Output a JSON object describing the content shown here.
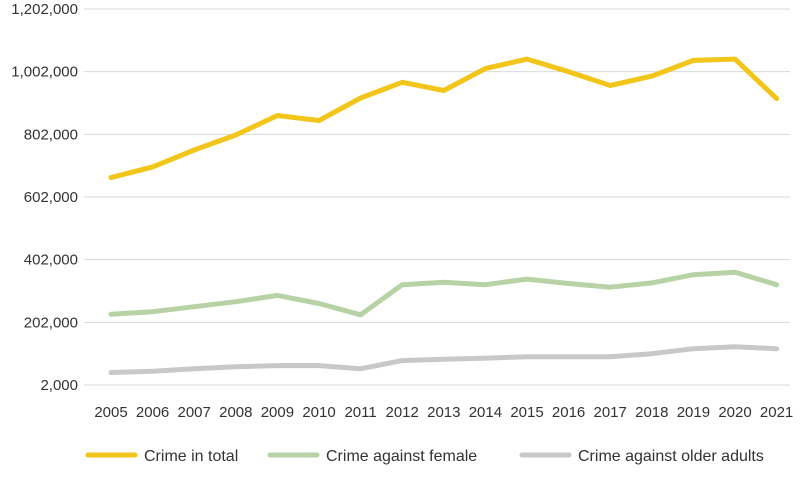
{
  "chart_data": {
    "type": "line",
    "title": "",
    "xlabel": "",
    "ylabel": "",
    "x": [
      "2005",
      "2006",
      "2007",
      "2008",
      "2009",
      "2010",
      "2011",
      "2012",
      "2013",
      "2014",
      "2015",
      "2016",
      "2017",
      "2018",
      "2019",
      "2020",
      "2021"
    ],
    "ylim": [
      2000,
      1202000
    ],
    "yticks": [
      2000,
      202000,
      402000,
      602000,
      802000,
      1002000,
      1202000
    ],
    "ytick_labels": [
      "2,000",
      "202,000",
      "402,000",
      "602,000",
      "802,000",
      "1,002,000",
      "1,202,000"
    ],
    "grid": "horizontal",
    "legend_position": "bottom",
    "series": [
      {
        "name": "Crime in total",
        "color": "#f2c51a",
        "values": [
          664000,
          698000,
          752000,
          800000,
          862000,
          846000,
          918000,
          968000,
          942000,
          1012000,
          1042000,
          1002000,
          958000,
          988000,
          1038000,
          1042000,
          916000
        ]
      },
      {
        "name": "Crime against female",
        "color": "#b7d3a6",
        "values": [
          228000,
          236000,
          252000,
          268000,
          288000,
          262000,
          226000,
          322000,
          330000,
          322000,
          340000,
          326000,
          314000,
          328000,
          354000,
          362000,
          322000
        ]
      },
      {
        "name": "Crime against older adults",
        "color": "#c8c8c8",
        "values": [
          42000,
          46000,
          54000,
          60000,
          64000,
          64000,
          54000,
          80000,
          84000,
          88000,
          92000,
          92000,
          92000,
          102000,
          118000,
          124000,
          118000
        ]
      }
    ]
  }
}
